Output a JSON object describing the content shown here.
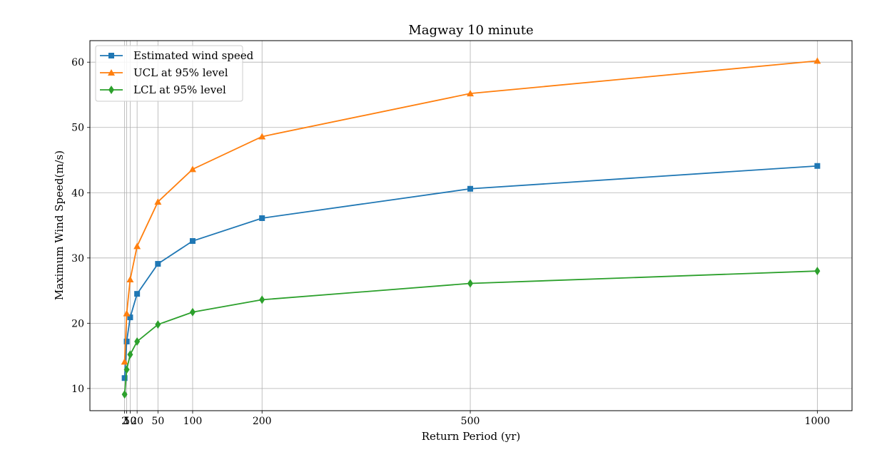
{
  "chart_data": {
    "type": "line",
    "title": "Magway 10 minute",
    "xlabel": "Return Period (yr)",
    "ylabel": "Maximum Wind Speed(m/s)",
    "x": [
      2,
      5,
      10,
      20,
      50,
      100,
      200,
      500,
      1000
    ],
    "xticks": [
      2,
      5,
      10,
      20,
      50,
      100,
      200,
      500,
      1000
    ],
    "yticks": [
      10,
      20,
      30,
      40,
      50,
      60
    ],
    "xlim": [
      -48,
      1050
    ],
    "ylim": [
      6.6,
      63.3
    ],
    "grid": true,
    "legend_position": "upper-left",
    "series": [
      {
        "name": "Estimated wind speed",
        "color": "#1f77b4",
        "marker": "square",
        "values": [
          11.6,
          17.2,
          20.9,
          24.5,
          29.1,
          32.6,
          36.1,
          40.6,
          44.1
        ]
      },
      {
        "name": "UCL at 95% level",
        "color": "#ff7f0e",
        "marker": "triangle",
        "values": [
          14.1,
          21.5,
          26.7,
          31.8,
          38.6,
          43.6,
          48.6,
          55.2,
          60.2
        ]
      },
      {
        "name": "LCL at 95% level",
        "color": "#2ca02c",
        "marker": "diamond",
        "values": [
          9.1,
          12.9,
          15.2,
          17.2,
          19.8,
          21.7,
          23.6,
          26.1,
          28.0
        ]
      }
    ]
  }
}
